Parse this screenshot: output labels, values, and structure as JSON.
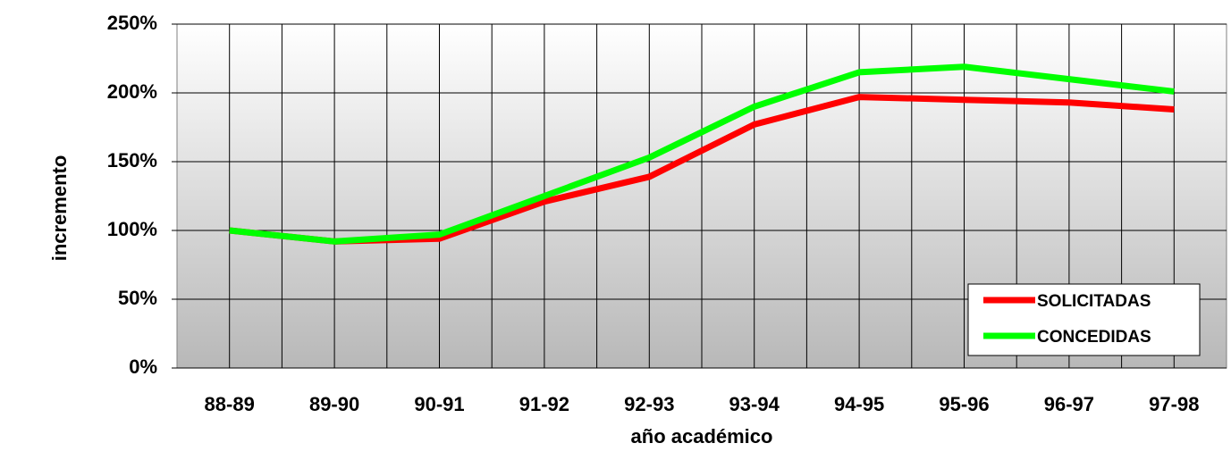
{
  "chart_data": {
    "type": "line",
    "categories": [
      "88-89",
      "89-90",
      "90-91",
      "91-92",
      "92-93",
      "93-94",
      "94-95",
      "95-96",
      "96-97",
      "97-98"
    ],
    "series": [
      {
        "name": "SOLICITADAS",
        "color": "#ff0000",
        "values": [
          100,
          92,
          94,
          121,
          139,
          177,
          197,
          195,
          193,
          188
        ]
      },
      {
        "name": "CONCEDIDAS",
        "color": "#00ff00",
        "values": [
          100,
          92,
          97,
          125,
          153,
          190,
          215,
          219,
          210,
          201
        ]
      }
    ],
    "ylim": [
      0,
      250
    ],
    "yticks": [
      {
        "value": 0,
        "label": "0%"
      },
      {
        "value": 50,
        "label": "50%"
      },
      {
        "value": 100,
        "label": "100%"
      },
      {
        "value": 150,
        "label": "150%"
      },
      {
        "value": 200,
        "label": "200%"
      },
      {
        "value": 250,
        "label": "250%"
      }
    ],
    "ylabel": "incremento",
    "xlabel": "año académico",
    "grid": true,
    "legend": "lower right"
  }
}
